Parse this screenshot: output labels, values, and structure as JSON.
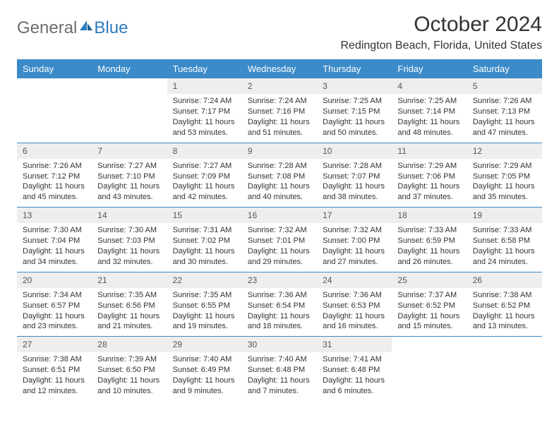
{
  "brand": {
    "part1": "General",
    "part2": "Blue"
  },
  "title": "October 2024",
  "location": "Redington Beach, Florida, United States",
  "colors": {
    "header_bg": "#3b8bc9",
    "header_text": "#ffffff",
    "daynum_bg": "#eeeeee",
    "week_border": "#3b8bc9",
    "text": "#333333",
    "brand_gray": "#6d6d6d",
    "brand_blue": "#2d7bc0",
    "page_bg": "#ffffff"
  },
  "day_names": [
    "Sunday",
    "Monday",
    "Tuesday",
    "Wednesday",
    "Thursday",
    "Friday",
    "Saturday"
  ],
  "weeks": [
    [
      null,
      null,
      {
        "n": "1",
        "sr": "7:24 AM",
        "ss": "7:17 PM",
        "dl": "11 hours and 53 minutes."
      },
      {
        "n": "2",
        "sr": "7:24 AM",
        "ss": "7:16 PM",
        "dl": "11 hours and 51 minutes."
      },
      {
        "n": "3",
        "sr": "7:25 AM",
        "ss": "7:15 PM",
        "dl": "11 hours and 50 minutes."
      },
      {
        "n": "4",
        "sr": "7:25 AM",
        "ss": "7:14 PM",
        "dl": "11 hours and 48 minutes."
      },
      {
        "n": "5",
        "sr": "7:26 AM",
        "ss": "7:13 PM",
        "dl": "11 hours and 47 minutes."
      }
    ],
    [
      {
        "n": "6",
        "sr": "7:26 AM",
        "ss": "7:12 PM",
        "dl": "11 hours and 45 minutes."
      },
      {
        "n": "7",
        "sr": "7:27 AM",
        "ss": "7:10 PM",
        "dl": "11 hours and 43 minutes."
      },
      {
        "n": "8",
        "sr": "7:27 AM",
        "ss": "7:09 PM",
        "dl": "11 hours and 42 minutes."
      },
      {
        "n": "9",
        "sr": "7:28 AM",
        "ss": "7:08 PM",
        "dl": "11 hours and 40 minutes."
      },
      {
        "n": "10",
        "sr": "7:28 AM",
        "ss": "7:07 PM",
        "dl": "11 hours and 38 minutes."
      },
      {
        "n": "11",
        "sr": "7:29 AM",
        "ss": "7:06 PM",
        "dl": "11 hours and 37 minutes."
      },
      {
        "n": "12",
        "sr": "7:29 AM",
        "ss": "7:05 PM",
        "dl": "11 hours and 35 minutes."
      }
    ],
    [
      {
        "n": "13",
        "sr": "7:30 AM",
        "ss": "7:04 PM",
        "dl": "11 hours and 34 minutes."
      },
      {
        "n": "14",
        "sr": "7:30 AM",
        "ss": "7:03 PM",
        "dl": "11 hours and 32 minutes."
      },
      {
        "n": "15",
        "sr": "7:31 AM",
        "ss": "7:02 PM",
        "dl": "11 hours and 30 minutes."
      },
      {
        "n": "16",
        "sr": "7:32 AM",
        "ss": "7:01 PM",
        "dl": "11 hours and 29 minutes."
      },
      {
        "n": "17",
        "sr": "7:32 AM",
        "ss": "7:00 PM",
        "dl": "11 hours and 27 minutes."
      },
      {
        "n": "18",
        "sr": "7:33 AM",
        "ss": "6:59 PM",
        "dl": "11 hours and 26 minutes."
      },
      {
        "n": "19",
        "sr": "7:33 AM",
        "ss": "6:58 PM",
        "dl": "11 hours and 24 minutes."
      }
    ],
    [
      {
        "n": "20",
        "sr": "7:34 AM",
        "ss": "6:57 PM",
        "dl": "11 hours and 23 minutes."
      },
      {
        "n": "21",
        "sr": "7:35 AM",
        "ss": "6:56 PM",
        "dl": "11 hours and 21 minutes."
      },
      {
        "n": "22",
        "sr": "7:35 AM",
        "ss": "6:55 PM",
        "dl": "11 hours and 19 minutes."
      },
      {
        "n": "23",
        "sr": "7:36 AM",
        "ss": "6:54 PM",
        "dl": "11 hours and 18 minutes."
      },
      {
        "n": "24",
        "sr": "7:36 AM",
        "ss": "6:53 PM",
        "dl": "11 hours and 16 minutes."
      },
      {
        "n": "25",
        "sr": "7:37 AM",
        "ss": "6:52 PM",
        "dl": "11 hours and 15 minutes."
      },
      {
        "n": "26",
        "sr": "7:38 AM",
        "ss": "6:52 PM",
        "dl": "11 hours and 13 minutes."
      }
    ],
    [
      {
        "n": "27",
        "sr": "7:38 AM",
        "ss": "6:51 PM",
        "dl": "11 hours and 12 minutes."
      },
      {
        "n": "28",
        "sr": "7:39 AM",
        "ss": "6:50 PM",
        "dl": "11 hours and 10 minutes."
      },
      {
        "n": "29",
        "sr": "7:40 AM",
        "ss": "6:49 PM",
        "dl": "11 hours and 9 minutes."
      },
      {
        "n": "30",
        "sr": "7:40 AM",
        "ss": "6:48 PM",
        "dl": "11 hours and 7 minutes."
      },
      {
        "n": "31",
        "sr": "7:41 AM",
        "ss": "6:48 PM",
        "dl": "11 hours and 6 minutes."
      },
      null,
      null
    ]
  ],
  "labels": {
    "sunrise": "Sunrise:",
    "sunset": "Sunset:",
    "daylight": "Daylight:"
  }
}
